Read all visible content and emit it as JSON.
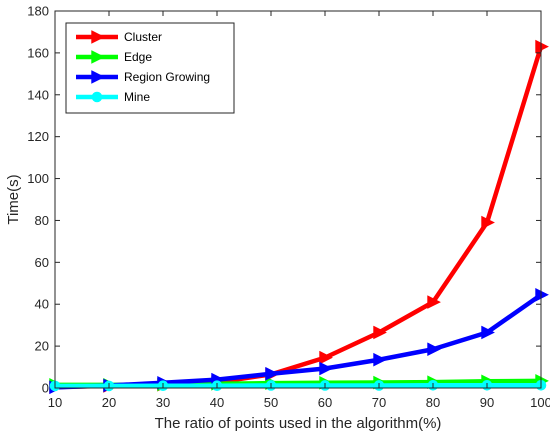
{
  "chart_data": {
    "type": "line",
    "title": "",
    "xlabel": "The ratio of points used in the algorithm(%)",
    "ylabel": "Time(s)",
    "xlim": [
      10,
      100
    ],
    "ylim": [
      0,
      180
    ],
    "x": [
      10,
      20,
      30,
      40,
      50,
      60,
      70,
      80,
      90,
      100
    ],
    "xticks": [
      10,
      20,
      30,
      40,
      50,
      60,
      70,
      80,
      90,
      100
    ],
    "yticks": [
      0,
      20,
      40,
      60,
      80,
      100,
      120,
      140,
      160,
      180
    ],
    "grid": false,
    "legend_position": "top-left",
    "series": [
      {
        "name": "Cluster",
        "color": "#ff0000",
        "marker": "triangle-right",
        "values": [
          0.5,
          1.0,
          1.6,
          2.7,
          6.5,
          14.5,
          26.5,
          41.0,
          79.0,
          163.0
        ]
      },
      {
        "name": "Edge",
        "color": "#00ff00",
        "marker": "triangle-right",
        "values": [
          1.5,
          1.5,
          1.7,
          2.0,
          2.3,
          2.5,
          2.6,
          2.8,
          3.2,
          3.4
        ]
      },
      {
        "name": "Region Growing",
        "color": "#0000ff",
        "marker": "triangle-right",
        "values": [
          0.3,
          1.2,
          2.5,
          4.0,
          6.8,
          9.3,
          13.5,
          18.5,
          26.5,
          44.5
        ]
      },
      {
        "name": "Mine",
        "color": "#00ffff",
        "marker": "circle",
        "values": [
          1.0,
          1.0,
          1.1,
          1.1,
          1.2,
          1.2,
          1.2,
          1.3,
          1.3,
          1.3
        ]
      }
    ]
  }
}
